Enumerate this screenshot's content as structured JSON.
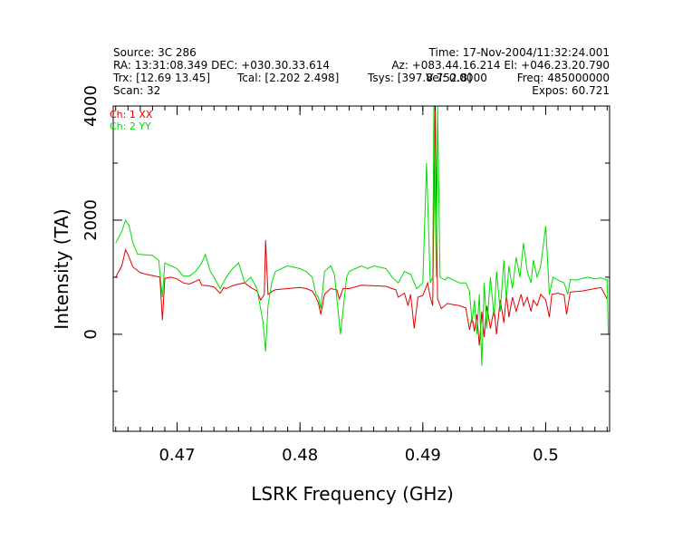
{
  "header": {
    "source": "Source: 3C 286",
    "time": "Time: 17-Nov-2004/11:32:24.001",
    "ra_dec": "RA: 13:31:08.349 DEC: +030.30.33.614",
    "az_el": "Az: +083.44.16.214 El: +046.23.20.790",
    "trx": "Trx: [12.69 13.45]",
    "tcal": "Tcal: [2.202 2.498]",
    "tsys": "Tsys: [397.8 752.8]",
    "vel": "Vel: 0.0000",
    "freq": "Freq: 485000000",
    "scan": "Scan: 32",
    "expos": "Expos: 60.721"
  },
  "chart_data": {
    "type": "line",
    "title": "",
    "xlabel": "LSRK Frequency (GHz)",
    "ylabel": "Intensity (TA)",
    "xlim": [
      0.4648,
      0.5052
    ],
    "ylim": [
      -1700,
      4000
    ],
    "x_ticks": [
      0.47,
      0.48,
      0.49,
      0.5
    ],
    "x_tick_labels": [
      "0.47",
      "0.48",
      "0.49",
      "0.5"
    ],
    "y_ticks": [
      0,
      2000,
      4000
    ],
    "y_tick_labels": [
      "0",
      "2000",
      "4000"
    ],
    "grid": false,
    "legend_position": "top-left",
    "series": [
      {
        "name": "Ch: 1 XX",
        "color": "#e00000",
        "points": [
          [
            0.465,
            1000
          ],
          [
            0.4655,
            1200
          ],
          [
            0.4658,
            1480
          ],
          [
            0.466,
            1400
          ],
          [
            0.4664,
            1180
          ],
          [
            0.467,
            1080
          ],
          [
            0.4675,
            1050
          ],
          [
            0.468,
            1030
          ],
          [
            0.4686,
            1000
          ],
          [
            0.4688,
            250
          ],
          [
            0.469,
            980
          ],
          [
            0.4695,
            1000
          ],
          [
            0.47,
            970
          ],
          [
            0.4705,
            900
          ],
          [
            0.471,
            880
          ],
          [
            0.4715,
            930
          ],
          [
            0.4718,
            960
          ],
          [
            0.472,
            860
          ],
          [
            0.4725,
            850
          ],
          [
            0.473,
            830
          ],
          [
            0.4735,
            720
          ],
          [
            0.4738,
            820
          ],
          [
            0.474,
            800
          ],
          [
            0.4745,
            850
          ],
          [
            0.475,
            880
          ],
          [
            0.4755,
            900
          ],
          [
            0.476,
            820
          ],
          [
            0.4765,
            760
          ],
          [
            0.4768,
            600
          ],
          [
            0.4771,
            700
          ],
          [
            0.4772,
            1650
          ],
          [
            0.4774,
            700
          ],
          [
            0.4778,
            760
          ],
          [
            0.478,
            780
          ],
          [
            0.479,
            800
          ],
          [
            0.48,
            820
          ],
          [
            0.4805,
            800
          ],
          [
            0.481,
            760
          ],
          [
            0.4813,
            650
          ],
          [
            0.4815,
            550
          ],
          [
            0.4817,
            350
          ],
          [
            0.482,
            700
          ],
          [
            0.4825,
            800
          ],
          [
            0.483,
            780
          ],
          [
            0.4832,
            620
          ],
          [
            0.4835,
            800
          ],
          [
            0.484,
            800
          ],
          [
            0.485,
            860
          ],
          [
            0.486,
            850
          ],
          [
            0.487,
            840
          ],
          [
            0.4875,
            800
          ],
          [
            0.4878,
            780
          ],
          [
            0.488,
            650
          ],
          [
            0.4885,
            720
          ],
          [
            0.4888,
            500
          ],
          [
            0.489,
            700
          ],
          [
            0.4893,
            100
          ],
          [
            0.4896,
            650
          ],
          [
            0.49,
            680
          ],
          [
            0.4904,
            900
          ],
          [
            0.4906,
            650
          ],
          [
            0.4908,
            500
          ],
          [
            0.491,
            4000
          ],
          [
            0.4912,
            620
          ],
          [
            0.4915,
            450
          ],
          [
            0.492,
            540
          ],
          [
            0.4925,
            520
          ],
          [
            0.493,
            500
          ],
          [
            0.4935,
            460
          ],
          [
            0.4938,
            80
          ],
          [
            0.494,
            300
          ],
          [
            0.4942,
            50
          ],
          [
            0.4944,
            350
          ],
          [
            0.4946,
            -200
          ],
          [
            0.4948,
            400
          ],
          [
            0.495,
            -50
          ],
          [
            0.4952,
            500
          ],
          [
            0.4955,
            100
          ],
          [
            0.4958,
            450
          ],
          [
            0.496,
            0
          ],
          [
            0.4963,
            600
          ],
          [
            0.4966,
            200
          ],
          [
            0.4968,
            700
          ],
          [
            0.497,
            300
          ],
          [
            0.4973,
            650
          ],
          [
            0.4976,
            400
          ],
          [
            0.498,
            700
          ],
          [
            0.4982,
            500
          ],
          [
            0.4985,
            650
          ],
          [
            0.4988,
            400
          ],
          [
            0.499,
            600
          ],
          [
            0.4993,
            500
          ],
          [
            0.4996,
            700
          ],
          [
            0.5,
            600
          ],
          [
            0.5003,
            300
          ],
          [
            0.5005,
            700
          ],
          [
            0.501,
            720
          ],
          [
            0.5015,
            690
          ],
          [
            0.5017,
            350
          ],
          [
            0.502,
            740
          ],
          [
            0.5025,
            750
          ],
          [
            0.503,
            760
          ],
          [
            0.5035,
            780
          ],
          [
            0.504,
            800
          ],
          [
            0.5045,
            820
          ],
          [
            0.505,
            620
          ]
        ]
      },
      {
        "name": "Ch: 2 YY",
        "color": "#00dd00",
        "points": [
          [
            0.465,
            1600
          ],
          [
            0.4655,
            1800
          ],
          [
            0.4658,
            2000
          ],
          [
            0.4661,
            1900
          ],
          [
            0.4664,
            1600
          ],
          [
            0.4668,
            1400
          ],
          [
            0.467,
            1400
          ],
          [
            0.468,
            1380
          ],
          [
            0.4685,
            1300
          ],
          [
            0.4688,
            650
          ],
          [
            0.469,
            1250
          ],
          [
            0.4695,
            1200
          ],
          [
            0.47,
            1150
          ],
          [
            0.4705,
            1020
          ],
          [
            0.471,
            1020
          ],
          [
            0.4715,
            1100
          ],
          [
            0.472,
            1250
          ],
          [
            0.4723,
            1400
          ],
          [
            0.4727,
            1100
          ],
          [
            0.473,
            1000
          ],
          [
            0.4735,
            800
          ],
          [
            0.474,
            1000
          ],
          [
            0.4745,
            1150
          ],
          [
            0.475,
            1250
          ],
          [
            0.4753,
            1050
          ],
          [
            0.4755,
            900
          ],
          [
            0.476,
            1000
          ],
          [
            0.4765,
            800
          ],
          [
            0.477,
            200
          ],
          [
            0.4772,
            -300
          ],
          [
            0.4774,
            500
          ],
          [
            0.4777,
            900
          ],
          [
            0.478,
            1100
          ],
          [
            0.4785,
            1150
          ],
          [
            0.479,
            1200
          ],
          [
            0.48,
            1150
          ],
          [
            0.4805,
            1100
          ],
          [
            0.481,
            1000
          ],
          [
            0.4813,
            700
          ],
          [
            0.4815,
            650
          ],
          [
            0.4817,
            450
          ],
          [
            0.482,
            1100
          ],
          [
            0.4825,
            1200
          ],
          [
            0.4828,
            1050
          ],
          [
            0.4833,
            0
          ],
          [
            0.4838,
            1000
          ],
          [
            0.484,
            1100
          ],
          [
            0.4845,
            1150
          ],
          [
            0.485,
            1200
          ],
          [
            0.4855,
            1150
          ],
          [
            0.486,
            1200
          ],
          [
            0.487,
            1150
          ],
          [
            0.4875,
            1000
          ],
          [
            0.488,
            900
          ],
          [
            0.4885,
            1100
          ],
          [
            0.489,
            1050
          ],
          [
            0.4895,
            800
          ],
          [
            0.49,
            900
          ],
          [
            0.4903,
            3000
          ],
          [
            0.4906,
            900
          ],
          [
            0.4908,
            1000
          ],
          [
            0.4909,
            4000
          ],
          [
            0.4911,
            1000
          ],
          [
            0.4912,
            4000
          ],
          [
            0.4914,
            1000
          ],
          [
            0.4918,
            950
          ],
          [
            0.492,
            1000
          ],
          [
            0.4925,
            950
          ],
          [
            0.493,
            900
          ],
          [
            0.4935,
            900
          ],
          [
            0.4938,
            750
          ],
          [
            0.494,
            200
          ],
          [
            0.4942,
            600
          ],
          [
            0.4944,
            0
          ],
          [
            0.4946,
            700
          ],
          [
            0.4948,
            -550
          ],
          [
            0.495,
            900
          ],
          [
            0.4952,
            100
          ],
          [
            0.4955,
            1000
          ],
          [
            0.4958,
            300
          ],
          [
            0.496,
            1100
          ],
          [
            0.4963,
            400
          ],
          [
            0.4966,
            1300
          ],
          [
            0.4968,
            600
          ],
          [
            0.497,
            1200
          ],
          [
            0.4973,
            800
          ],
          [
            0.4976,
            1350
          ],
          [
            0.4979,
            1000
          ],
          [
            0.4982,
            1600
          ],
          [
            0.4985,
            1100
          ],
          [
            0.4988,
            900
          ],
          [
            0.499,
            1300
          ],
          [
            0.4993,
            1000
          ],
          [
            0.4996,
            1200
          ],
          [
            0.5,
            1900
          ],
          [
            0.5003,
            700
          ],
          [
            0.5006,
            1000
          ],
          [
            0.501,
            950
          ],
          [
            0.5015,
            900
          ],
          [
            0.5018,
            700
          ],
          [
            0.502,
            960
          ],
          [
            0.5025,
            950
          ],
          [
            0.503,
            980
          ],
          [
            0.5035,
            1000
          ],
          [
            0.504,
            970
          ],
          [
            0.5045,
            990
          ],
          [
            0.505,
            950
          ],
          [
            0.5051,
            0
          ]
        ]
      }
    ]
  }
}
